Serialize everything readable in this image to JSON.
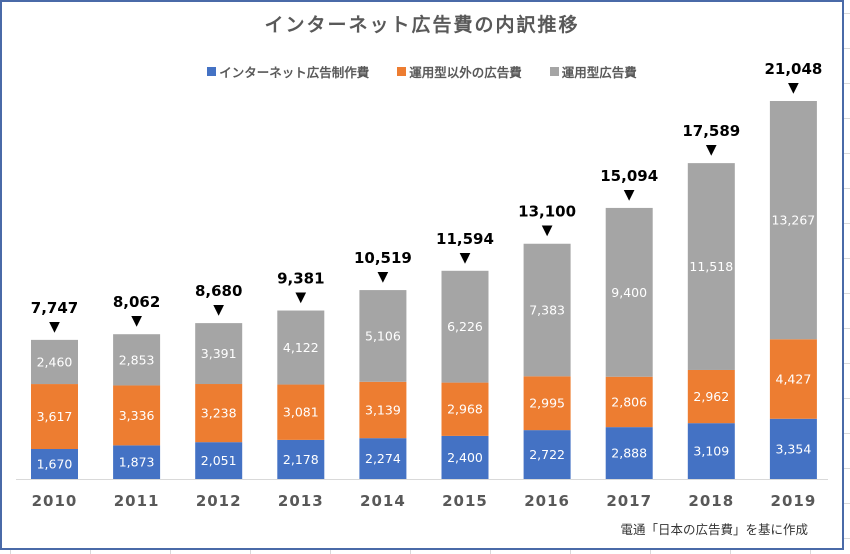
{
  "chart_data": {
    "type": "bar",
    "stacked": true,
    "title": "インターネット広告費の内訳推移",
    "xlabel": "",
    "ylabel": "",
    "categories": [
      "2010",
      "2011",
      "2012",
      "2013",
      "2014",
      "2015",
      "2016",
      "2017",
      "2018",
      "2019"
    ],
    "series": [
      {
        "name": "インターネット広告制作費",
        "color": "#4472c4",
        "values": [
          1670,
          1873,
          2051,
          2178,
          2274,
          2400,
          2722,
          2888,
          3109,
          3354
        ],
        "labels": [
          "1,670",
          "1,873",
          "2,051",
          "2,178",
          "2,274",
          "2,400",
          "2,722",
          "2,888",
          "3,109",
          "3,354"
        ]
      },
      {
        "name": "運用型以外の広告費",
        "color": "#ed7d31",
        "values": [
          3617,
          3336,
          3238,
          3081,
          3139,
          2968,
          2995,
          2806,
          2962,
          4427
        ],
        "labels": [
          "3,617",
          "3,336",
          "3,238",
          "3,081",
          "3,139",
          "2,968",
          "2,995",
          "2,806",
          "2,962",
          "4,427"
        ]
      },
      {
        "name": "運用型広告費",
        "color": "#a5a5a5",
        "values": [
          2460,
          2853,
          3391,
          4122,
          5106,
          6226,
          7383,
          9400,
          11518,
          13267
        ],
        "labels": [
          "2,460",
          "2,853",
          "3,391",
          "4,122",
          "5,106",
          "6,226",
          "7,383",
          "9,400",
          "11,518",
          "13,267"
        ]
      }
    ],
    "totals": [
      7747,
      8062,
      8680,
      9381,
      10519,
      11594,
      13100,
      15094,
      17589,
      21048
    ],
    "total_labels": [
      "7,747",
      "8,062",
      "8,680",
      "9,381",
      "10,519",
      "11,594",
      "13,100",
      "15,094",
      "17,589",
      "21,048"
    ],
    "total_marker": "▼",
    "ylim": [
      0,
      21048
    ],
    "grid": false,
    "legend_position": "top",
    "annotation": "電通「日本の広告費」を基に作成"
  }
}
